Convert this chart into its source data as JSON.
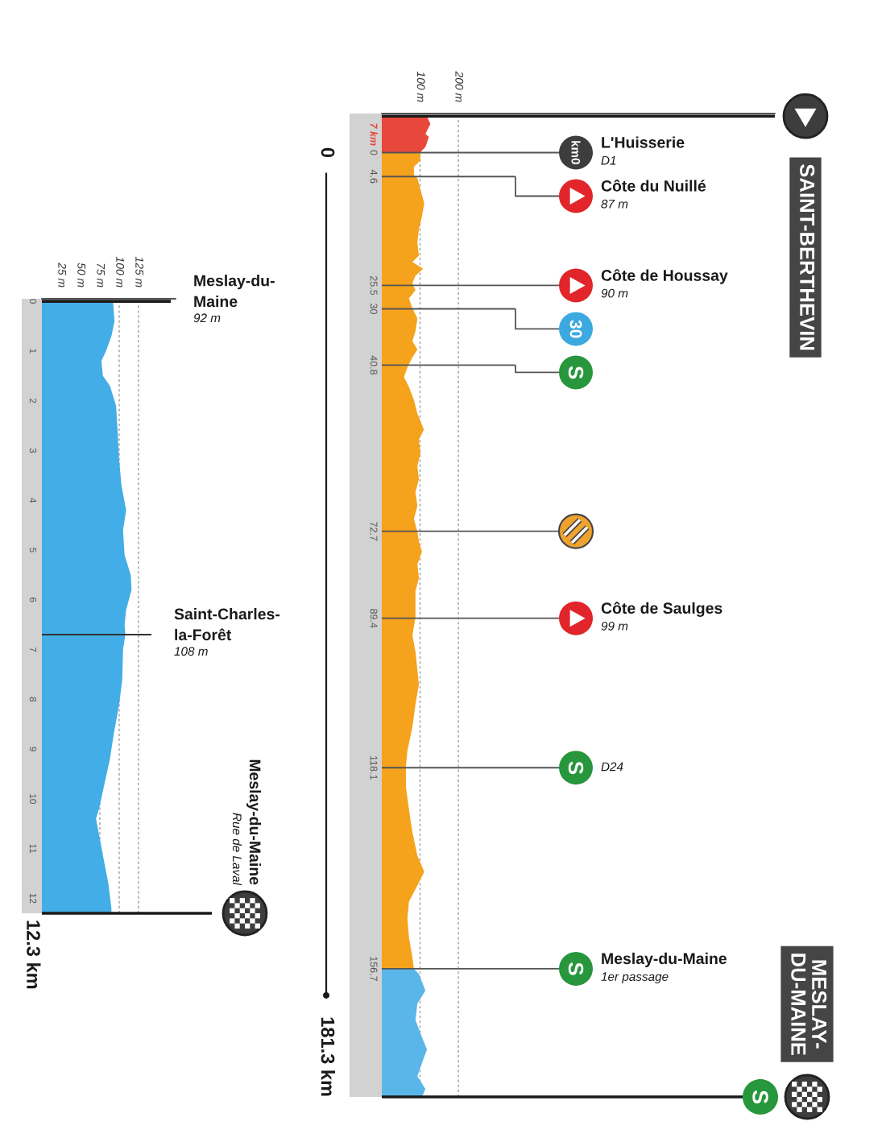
{
  "chart_data": [
    {
      "type": "area",
      "orientation": "horizontal",
      "series": [
        {
          "name": "7 km",
          "color": "#e8473b",
          "x": [
            -7,
            -5.5,
            -3.6,
            -3.0,
            -1.1,
            0
          ],
          "values": [
            118,
            127,
            114,
            123,
            114,
            100
          ]
        },
        {
          "color": "#f5a21c",
          "x": [
            0,
            1.5,
            2.7,
            4.3,
            4.9,
            7.1,
            9.7,
            12.2,
            14.7,
            17.2,
            19.8,
            21.0,
            22.3,
            23.6,
            25.1,
            26.4,
            28.0,
            29.9,
            31.8,
            34.3,
            36.2,
            37.8,
            39.3,
            41.2,
            43.1,
            45.0,
            47.5,
            50.1,
            53.2,
            55.1,
            57.7,
            60.2,
            62.7,
            65.2,
            67.8,
            70.3,
            72.8,
            74.7,
            76.6,
            79.1,
            81.7,
            84.2,
            86.7,
            89.2,
            92.7,
            95.8,
            102.1,
            105.9,
            110.3,
            114.8,
            117.9,
            121.7,
            126.1,
            130.5,
            135.0,
            138.1,
            140.7,
            143.8,
            147.0,
            150.7,
            154.5,
            156.7
          ],
          "values": [
            100,
            101,
            84,
            84,
            93,
            101,
            111,
            105,
            97,
            93,
            97,
            80,
            108,
            88,
            80,
            88,
            71,
            80,
            93,
            88,
            80,
            93,
            80,
            67,
            58,
            71,
            84,
            93,
            110,
            97,
            101,
            93,
            97,
            88,
            93,
            84,
            93,
            97,
            105,
            93,
            97,
            88,
            88,
            88,
            80,
            88,
            97,
            88,
            80,
            67,
            63,
            63,
            71,
            80,
            93,
            111,
            93,
            71,
            67,
            71,
            80,
            84
          ]
        },
        {
          "color": "#5ab6e8",
          "x": [
            156.7,
            157.7,
            160.9,
            163.4,
            166.5,
            169.1,
            172.2,
            174.8,
            177.3,
            179.8,
            181.3
          ],
          "values": [
            84,
            97,
            114,
            93,
            88,
            101,
            118,
            105,
            93,
            114,
            105
          ]
        }
      ],
      "xlim": [
        0,
        1027
      ],
      "xticks": [
        {
          "value": 100,
          "label": "100 m"
        },
        {
          "value": 200,
          "label": "200 m"
        }
      ],
      "ylim": [
        181.3,
        -7.5
      ],
      "yticks": [
        0,
        4.6,
        25.5,
        30,
        40.8,
        72.7,
        89.4,
        118.1,
        156.7
      ],
      "grid": "x",
      "ref_lines": [
        {
          "axis": "y",
          "value": -7,
          "label": "SAINT-BERTHEVIN",
          "color": "#1a1a1a"
        },
        {
          "axis": "y",
          "value": 0,
          "label": "L'Huisserie\nD1",
          "color": "#555555"
        },
        {
          "axis": "y",
          "value": 4.6,
          "label": "Côte du Nuillé\n87 m",
          "color": "#555555"
        },
        {
          "axis": "y",
          "value": 25.5,
          "label": "Côte de Houssay\n90 m",
          "color": "#555555"
        },
        {
          "axis": "y",
          "value": 30,
          "color": "#555555"
        },
        {
          "axis": "y",
          "value": 40.8,
          "color": "#555555"
        },
        {
          "axis": "y",
          "value": 72.7,
          "color": "#555555"
        },
        {
          "axis": "y",
          "value": 89.4,
          "label": "Côte de Saulges\n99 m",
          "color": "#555555"
        },
        {
          "axis": "y",
          "value": 118.1,
          "label": "D24",
          "color": "#555555"
        },
        {
          "axis": "y",
          "value": 156.7,
          "label": "Meslay-du-Maine\n1er passage",
          "color": "#555555"
        },
        {
          "axis": "y",
          "value": 181.3,
          "label": "MESLAY-\nDU-MAINE",
          "color": "#1a1a1a"
        }
      ],
      "annotations": [
        "0",
        "181.3 km"
      ]
    },
    {
      "type": "area",
      "orientation": "horizontal",
      "series": [
        {
          "color": "#42ade6",
          "x": [
            0,
            0.4,
            0.7,
            1.0,
            1.2,
            1.5,
            1.7,
            2.1,
            2.6,
            3.2,
            3.7,
            4.2,
            4.6,
            5.1,
            5.5,
            5.8,
            6.2,
            6.5,
            6.7,
            7.0,
            7.6,
            8.1,
            8.7,
            9.2,
            9.7,
            10.2,
            10.4,
            10.8,
            11.3,
            11.7,
            12.2,
            12.3
          ],
          "values": [
            92,
            94,
            90,
            83,
            77,
            79,
            88,
            96,
            98,
            100,
            103,
            109,
            105,
            107,
            115,
            116,
            109,
            107,
            108,
            105,
            104,
            100,
            93,
            88,
            81,
            74,
            70,
            75,
            81,
            86,
            90,
            90
          ]
        }
      ],
      "xlim": [
        0,
        173
      ],
      "xticks": [
        {
          "value": 25,
          "label": "25 m"
        },
        {
          "value": 50,
          "label": "50 m"
        },
        {
          "value": 75,
          "label": "75 m"
        },
        {
          "value": 100,
          "label": "100 m"
        },
        {
          "value": 125,
          "label": "125 m"
        }
      ],
      "ylim": [
        12.3,
        -0.05
      ],
      "yticks": [
        0,
        1,
        2,
        3,
        4,
        5,
        6,
        7,
        8,
        9,
        10,
        11,
        12
      ],
      "grid": "x",
      "ref_lines": [
        {
          "axis": "y",
          "value": 0,
          "label": "Meslay-du-\nMaine\n92 m",
          "color": "#1a1a1a"
        },
        {
          "axis": "y",
          "value": 6.7,
          "label": "Saint-Charles-\nla-Forêt\n108 m",
          "color": "#333333"
        },
        {
          "axis": "y",
          "value": 12.3,
          "label": "Meslay-du-Maine\nRue de Laval",
          "color": "#1a1a1a"
        }
      ],
      "annotations": [
        "12.3 km"
      ]
    }
  ]
}
